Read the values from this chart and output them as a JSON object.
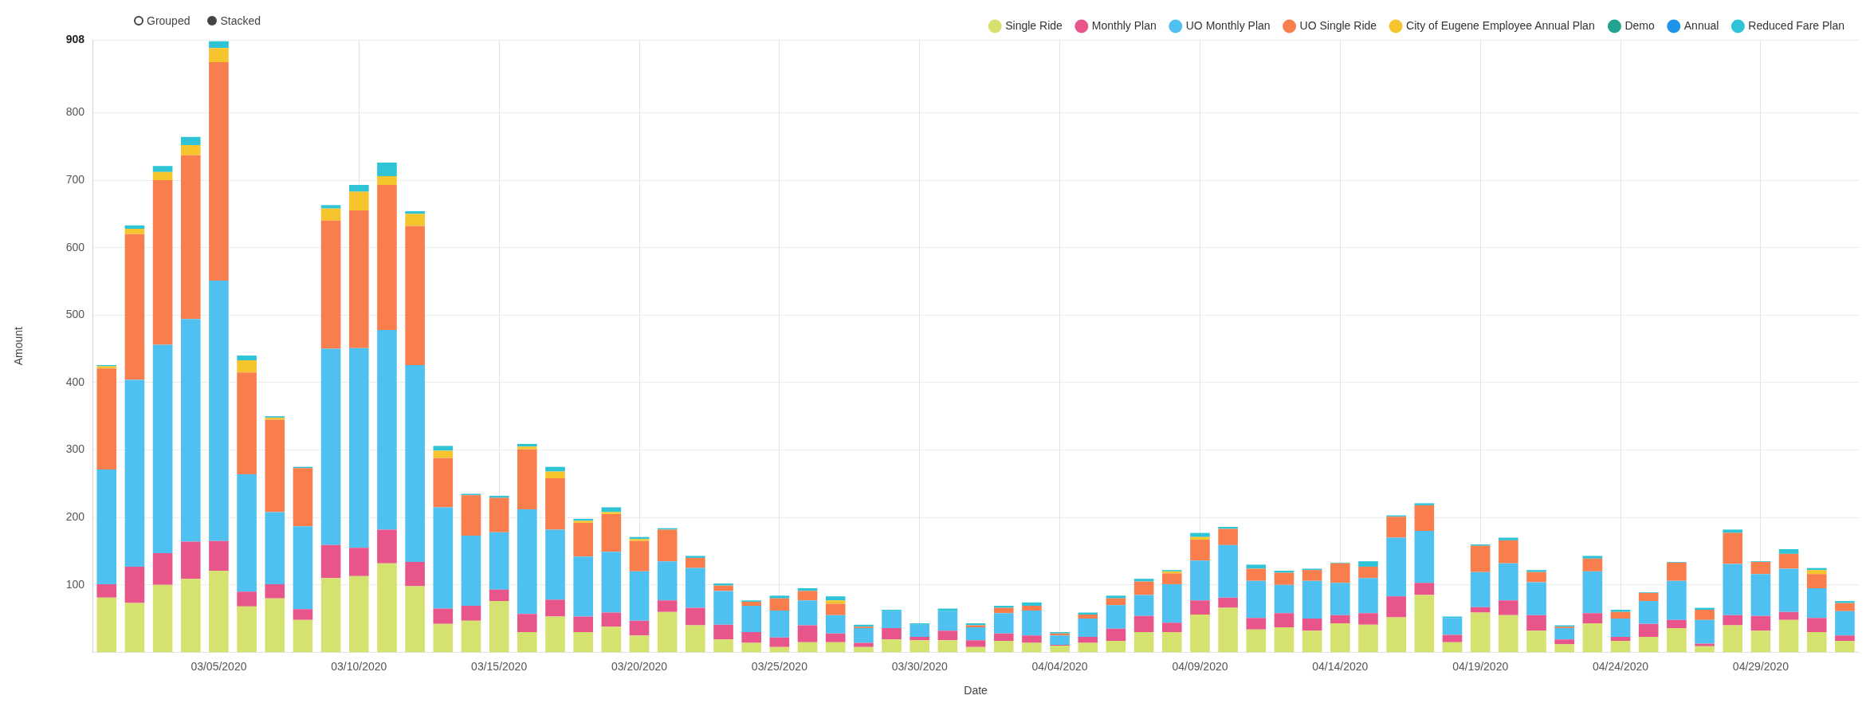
{
  "chart_data": {
    "type": "bar",
    "stacked": true,
    "xlabel": "Date",
    "ylabel": "Amount",
    "annotations": [
      "Grouped",
      "Stacked"
    ],
    "categories": [
      null,
      null,
      null,
      null,
      "03/05/2020",
      null,
      null,
      null,
      null,
      "03/10/2020",
      null,
      null,
      null,
      null,
      "03/15/2020",
      null,
      null,
      null,
      null,
      "03/20/2020",
      null,
      null,
      null,
      null,
      "03/25/2020",
      null,
      null,
      null,
      null,
      "03/30/2020",
      null,
      null,
      null,
      null,
      "04/04/2020",
      null,
      null,
      null,
      null,
      "04/09/2020",
      null,
      null,
      null,
      null,
      "04/14/2020",
      null,
      null,
      null,
      null,
      "04/19/2020",
      null,
      null,
      null,
      null,
      "04/24/2020",
      null,
      null,
      null,
      null,
      "04/29/2020",
      null,
      null,
      null
    ],
    "ylim": [
      0,
      908
    ],
    "yticks": [
      100,
      200,
      300,
      400,
      500,
      600,
      700,
      800,
      908
    ],
    "grid": true,
    "legend": "top right",
    "series": [
      {
        "name": "Single Ride",
        "color": "#d6e26f",
        "values": [
          81,
          73,
          100,
          109,
          121,
          68,
          80,
          48,
          110,
          113,
          132,
          98,
          42,
          47,
          76,
          30,
          53,
          30,
          38,
          25,
          60,
          40,
          19,
          14,
          8,
          15,
          15,
          8,
          19,
          18,
          18,
          8,
          17,
          14,
          10,
          14,
          17,
          30,
          30,
          56,
          66,
          34,
          37,
          32,
          43,
          41,
          52,
          85,
          15,
          59,
          55,
          32,
          12,
          43,
          17,
          23,
          36,
          9,
          40,
          32,
          48,
          30,
          17
        ]
      },
      {
        "name": "Monthly Plan",
        "color": "#e8558b",
        "values": [
          20,
          54,
          47,
          55,
          44,
          22,
          21,
          16,
          49,
          42,
          50,
          36,
          23,
          22,
          17,
          27,
          25,
          23,
          21,
          22,
          17,
          26,
          22,
          16,
          14,
          25,
          13,
          6,
          17,
          5,
          14,
          10,
          11,
          11,
          1,
          9,
          18,
          24,
          14,
          21,
          15,
          17,
          21,
          18,
          12,
          17,
          31,
          18,
          11,
          8,
          22,
          23,
          7,
          15,
          6,
          19,
          12,
          4,
          15,
          22,
          12,
          21,
          8
        ]
      },
      {
        "name": "UO Monthly Plan",
        "color": "#4fc1f0",
        "values": [
          170,
          277,
          309,
          330,
          386,
          174,
          107,
          123,
          291,
          296,
          296,
          292,
          150,
          104,
          85,
          155,
          104,
          89,
          90,
          73,
          58,
          59,
          50,
          39,
          40,
          37,
          27,
          22,
          25,
          18,
          29,
          19,
          30,
          37,
          14,
          27,
          35,
          31,
          57,
          59,
          78,
          55,
          42,
          56,
          48,
          52,
          87,
          77,
          25,
          52,
          55,
          49,
          17,
          62,
          27,
          34,
          58,
          35,
          76,
          62,
          64,
          44,
          36
        ]
      },
      {
        "name": "UO Single Ride",
        "color": "#f97e4d",
        "values": [
          150,
          216,
          244,
          243,
          324,
          151,
          137,
          86,
          190,
          204,
          215,
          206,
          73,
          60,
          51,
          89,
          76,
          50,
          56,
          45,
          47,
          15,
          8,
          6,
          18,
          14,
          17,
          2,
          0,
          0,
          0,
          3,
          8,
          7,
          3,
          6,
          10,
          20,
          16,
          31,
          24,
          18,
          18,
          16,
          29,
          17,
          31,
          38,
          0,
          39,
          34,
          15,
          2,
          19,
          10,
          12,
          27,
          15,
          46,
          18,
          22,
          21,
          12
        ]
      },
      {
        "name": "City of Eugene Employee Annual Plan",
        "color": "#f6c42c",
        "values": [
          3,
          8,
          12,
          15,
          21,
          18,
          3,
          0,
          18,
          28,
          13,
          18,
          11,
          0,
          0,
          4,
          10,
          3,
          3,
          3,
          0,
          0,
          0,
          0,
          0,
          0,
          5,
          0,
          0,
          0,
          0,
          0,
          0,
          0,
          0,
          0,
          0,
          0,
          3,
          4,
          0,
          0,
          0,
          0,
          0,
          0,
          0,
          0,
          0,
          0,
          0,
          0,
          0,
          0,
          0,
          0,
          0,
          0,
          0,
          0,
          0,
          6,
          0
        ]
      },
      {
        "name": "Demo",
        "color": "#22a38f",
        "values": [
          0,
          0,
          0,
          0,
          0,
          0,
          0,
          0,
          0,
          0,
          0,
          0,
          0,
          0,
          0,
          0,
          0,
          0,
          0,
          0,
          0,
          0,
          0,
          0,
          0,
          0,
          0,
          0,
          0,
          0,
          0,
          0,
          0,
          0,
          0,
          0,
          0,
          0,
          0,
          0,
          0,
          0,
          0,
          0,
          0,
          0,
          0,
          0,
          0,
          0,
          0,
          0,
          0,
          0,
          0,
          0,
          0,
          0,
          0,
          0,
          0,
          0,
          0
        ]
      },
      {
        "name": "Annual",
        "color": "#1e95e8",
        "values": [
          0,
          0,
          0,
          0,
          0,
          0,
          0,
          0,
          0,
          0,
          0,
          0,
          0,
          0,
          0,
          0,
          0,
          0,
          0,
          0,
          0,
          0,
          0,
          0,
          0,
          0,
          0,
          0,
          0,
          0,
          0,
          0,
          0,
          0,
          0,
          0,
          0,
          0,
          0,
          0,
          0,
          0,
          0,
          0,
          0,
          0,
          0,
          0,
          0,
          0,
          0,
          0,
          0,
          0,
          0,
          0,
          0,
          0,
          0,
          0,
          0,
          0,
          0
        ]
      },
      {
        "name": "Reduced Fare Plan",
        "color": "#2ec4d6",
        "values": [
          2,
          5,
          9,
          12,
          10,
          7,
          2,
          2,
          5,
          10,
          20,
          4,
          7,
          2,
          3,
          4,
          7,
          3,
          7,
          3,
          2,
          3,
          3,
          2,
          4,
          4,
          6,
          3,
          2,
          2,
          4,
          3,
          3,
          5,
          2,
          3,
          4,
          4,
          2,
          6,
          3,
          6,
          3,
          2,
          1,
          8,
          2,
          3,
          2,
          2,
          4,
          3,
          2,
          4,
          3,
          1,
          1,
          3,
          5,
          1,
          7,
          3,
          3
        ]
      }
    ]
  }
}
